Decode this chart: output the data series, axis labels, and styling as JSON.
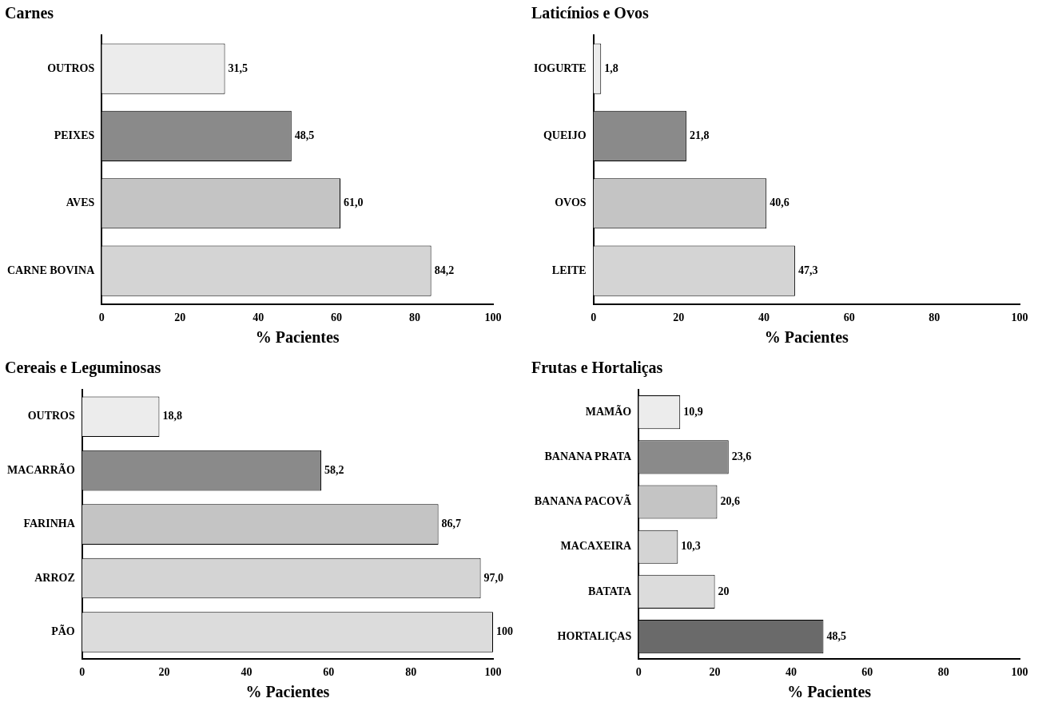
{
  "chart_data": [
    {
      "type": "bar",
      "orientation": "horizontal",
      "title": "Carnes",
      "xlabel": "% Pacientes",
      "categories": [
        "OUTROS",
        "PEIXES",
        "AVES",
        "CARNE BOVINA"
      ],
      "values": [
        31.5,
        48.5,
        61.0,
        84.2
      ],
      "value_labels": [
        "31,5",
        "48,5",
        "61,0",
        "84,2"
      ],
      "colors": [
        "#ececec",
        "#8a8a8a",
        "#c4c4c4",
        "#d4d4d4"
      ],
      "xlim": [
        0,
        100
      ],
      "xticks": [
        0,
        20,
        40,
        60,
        80,
        100
      ],
      "grid": false,
      "legend": false
    },
    {
      "type": "bar",
      "orientation": "horizontal",
      "title": "Laticínios e Ovos",
      "xlabel": "% Pacientes",
      "categories": [
        "IOGURTE",
        "QUEIJO",
        "OVOS",
        "LEITE"
      ],
      "values": [
        1.8,
        21.8,
        40.6,
        47.3
      ],
      "value_labels": [
        "1,8",
        "21,8",
        "40,6",
        "47,3"
      ],
      "colors": [
        "#ececec",
        "#8a8a8a",
        "#c4c4c4",
        "#d4d4d4"
      ],
      "xlim": [
        0,
        100
      ],
      "xticks": [
        0,
        20,
        40,
        60,
        80,
        100
      ],
      "grid": false,
      "legend": false
    },
    {
      "type": "bar",
      "orientation": "horizontal",
      "title": "Cereais e Leguminosas",
      "xlabel": "% Pacientes",
      "categories": [
        "OUTROS",
        "MACARRÃO",
        "FARINHA",
        "ARROZ",
        "PÃO"
      ],
      "values": [
        18.8,
        58.2,
        86.7,
        97.0,
        100
      ],
      "value_labels": [
        "18,8",
        "58,2",
        "86,7",
        "97,0",
        "100"
      ],
      "colors": [
        "#ececec",
        "#8a8a8a",
        "#c4c4c4",
        "#d4d4d4",
        "#dcdcdc"
      ],
      "xlim": [
        0,
        100
      ],
      "xticks": [
        0,
        20,
        40,
        60,
        80,
        100
      ],
      "grid": false,
      "legend": false
    },
    {
      "type": "bar",
      "orientation": "horizontal",
      "title": "Frutas e Hortaliças",
      "xlabel": "% Pacientes",
      "categories": [
        "MAMÃO",
        "BANANA PRATA",
        "BANANA PACOVÃ",
        "MACAXEIRA",
        "BATATA",
        "HORTALIÇAS"
      ],
      "values": [
        10.9,
        23.6,
        20.6,
        10.3,
        20,
        48.5
      ],
      "value_labels": [
        "10,9",
        "23,6",
        "20,6",
        "10,3",
        "20",
        "48,5"
      ],
      "colors": [
        "#ececec",
        "#8a8a8a",
        "#c4c4c4",
        "#d4d4d4",
        "#dcdcdc",
        "#6a6a6a"
      ],
      "xlim": [
        0,
        100
      ],
      "xticks": [
        0,
        20,
        40,
        60,
        80,
        100
      ],
      "grid": false,
      "legend": false
    }
  ]
}
